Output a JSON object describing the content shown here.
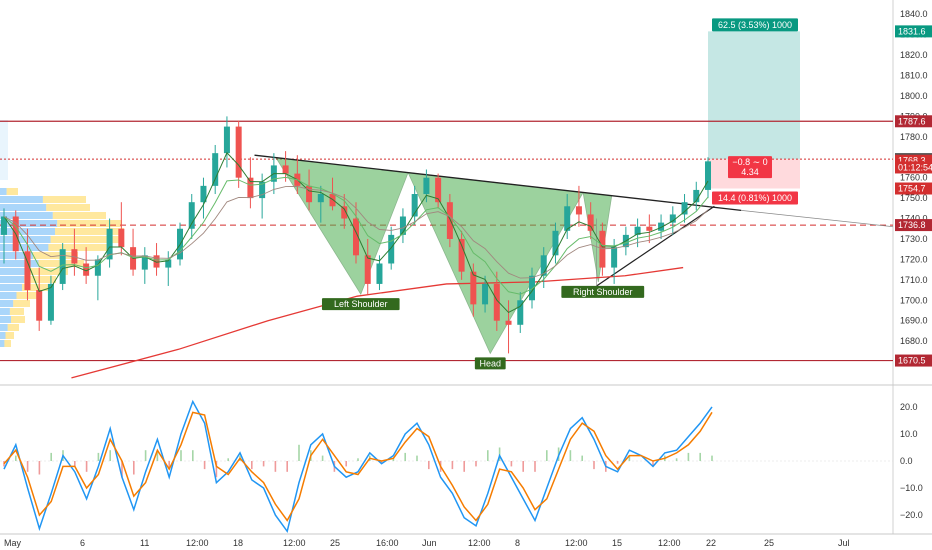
{
  "chart_data": [
    {
      "type": "candlestick",
      "price_axis": {
        "min": 1660,
        "max": 1845,
        "ticks": [
          1680,
          1690,
          1700,
          1710,
          1720,
          1730,
          1740,
          1750,
          1760,
          1770,
          1780,
          1790,
          1800,
          1810,
          1820,
          1830,
          1840
        ],
        "tick_labels": [
          "1680.0",
          "1690.0",
          "1700.0",
          "1710.0",
          "1720.0",
          "1730.0",
          "1740.0",
          "1750.0",
          "1760.0",
          "1770.0",
          "1780.0",
          "1790.0",
          "1800.0",
          "1810.0",
          "1820.0",
          "1830.0",
          "1840.0"
        ]
      },
      "time_axis": {
        "labels": [
          "May",
          "6",
          "11",
          "12:00",
          "18",
          "12:00",
          "25",
          "16:00",
          "Jun",
          "12:00",
          "8",
          "12:00",
          "15",
          "12:00",
          "22",
          "25",
          "Jul"
        ]
      },
      "price_tags": [
        {
          "value": 1831.6,
          "label": "1831.6",
          "color": "#089981"
        },
        {
          "value": 1787.6,
          "label": "1787.6",
          "color": "#b22833"
        },
        {
          "value": 1769.1,
          "label": "1769.1",
          "color": "#555555"
        },
        {
          "value": 1768.3,
          "label": "1768.3",
          "color": "#d32f2f"
        },
        {
          "value": 1765.0,
          "label": "01:12:54",
          "color": "#d32f2f"
        },
        {
          "value": 1754.7,
          "label": "1754.7",
          "color": "#d32f2f"
        },
        {
          "value": 1736.8,
          "label": "1736.8",
          "color": "#b22833"
        },
        {
          "value": 1670.5,
          "label": "1670.5",
          "color": "#b22833"
        }
      ],
      "horizontal_levels": [
        {
          "value": 1787.6,
          "style": "solid",
          "color": "#b22833"
        },
        {
          "value": 1736.8,
          "style": "dashed",
          "color": "#d32f2f"
        },
        {
          "value": 1670.5,
          "style": "solid",
          "color": "#b22833"
        },
        {
          "value": 1769.1,
          "style": "dotted",
          "color": "#d32f2f"
        }
      ],
      "position_tool": {
        "entry": 1769.1,
        "target": 1831.6,
        "stop": 1754.7,
        "target_label": "62.5 (3.53%) 1000",
        "stop_label": "14.4 (0.81%) 1000",
        "info_label_1": "−0.8 ∼ 0",
        "info_label_2": "4.34"
      },
      "pattern_labels": [
        "Left Shoulder",
        "Head",
        "Right Shoulder"
      ],
      "pattern_points": [
        {
          "t": 0.309,
          "p": 1771
        },
        {
          "t": 0.404,
          "p": 1703
        },
        {
          "t": 0.457,
          "p": 1762
        },
        {
          "t": 0.549,
          "p": 1674
        },
        {
          "t": 0.653,
          "p": 1752
        },
        {
          "t": 0.67,
          "p": 1709
        }
      ],
      "neckline": [
        {
          "t": 0.285,
          "p": 1771
        },
        {
          "t": 0.83,
          "p": 1744
        }
      ],
      "ma_long": [
        {
          "t": 0.08,
          "p": 1662
        },
        {
          "t": 0.2,
          "p": 1676
        },
        {
          "t": 0.3,
          "p": 1690
        },
        {
          "t": 0.4,
          "p": 1702
        },
        {
          "t": 0.5,
          "p": 1708
        },
        {
          "t": 0.6,
          "p": 1709
        },
        {
          "t": 0.7,
          "p": 1712
        },
        {
          "t": 0.765,
          "p": 1716
        }
      ],
      "candles": [
        [
          1732,
          1745,
          1718,
          1741
        ],
        [
          1741,
          1744,
          1720,
          1724
        ],
        [
          1724,
          1735,
          1700,
          1705
        ],
        [
          1705,
          1716,
          1685,
          1690
        ],
        [
          1690,
          1712,
          1688,
          1708
        ],
        [
          1708,
          1728,
          1705,
          1725
        ],
        [
          1725,
          1735,
          1712,
          1718
        ],
        [
          1718,
          1726,
          1708,
          1712
        ],
        [
          1712,
          1722,
          1700,
          1720
        ],
        [
          1720,
          1740,
          1716,
          1735
        ],
        [
          1735,
          1748,
          1722,
          1726
        ],
        [
          1726,
          1735,
          1712,
          1715
        ],
        [
          1715,
          1726,
          1708,
          1722
        ],
        [
          1722,
          1728,
          1712,
          1716
        ],
        [
          1716,
          1724,
          1707,
          1720
        ],
        [
          1720,
          1738,
          1717,
          1735
        ],
        [
          1735,
          1752,
          1730,
          1748
        ],
        [
          1748,
          1760,
          1740,
          1756
        ],
        [
          1756,
          1776,
          1752,
          1772
        ],
        [
          1772,
          1790,
          1765,
          1785
        ],
        [
          1785,
          1788,
          1755,
          1760
        ],
        [
          1760,
          1770,
          1745,
          1750
        ],
        [
          1750,
          1762,
          1740,
          1758
        ],
        [
          1758,
          1772,
          1752,
          1766
        ],
        [
          1766,
          1773,
          1758,
          1762
        ],
        [
          1762,
          1771,
          1752,
          1756
        ],
        [
          1756,
          1764,
          1744,
          1748
        ],
        [
          1748,
          1756,
          1738,
          1752
        ],
        [
          1752,
          1760,
          1744,
          1746
        ],
        [
          1746,
          1752,
          1735,
          1740
        ],
        [
          1740,
          1748,
          1718,
          1722
        ],
        [
          1722,
          1730,
          1703,
          1708
        ],
        [
          1708,
          1722,
          1705,
          1718
        ],
        [
          1718,
          1736,
          1715,
          1732
        ],
        [
          1732,
          1745,
          1728,
          1741
        ],
        [
          1741,
          1756,
          1737,
          1752
        ],
        [
          1752,
          1764,
          1748,
          1760
        ],
        [
          1760,
          1762,
          1745,
          1748
        ],
        [
          1748,
          1752,
          1726,
          1730
        ],
        [
          1730,
          1734,
          1710,
          1714
        ],
        [
          1714,
          1718,
          1692,
          1698
        ],
        [
          1698,
          1712,
          1694,
          1708
        ],
        [
          1708,
          1714,
          1685,
          1690
        ],
        [
          1690,
          1700,
          1674,
          1688
        ],
        [
          1688,
          1704,
          1684,
          1700
        ],
        [
          1700,
          1716,
          1696,
          1712
        ],
        [
          1712,
          1726,
          1706,
          1722
        ],
        [
          1722,
          1738,
          1718,
          1734
        ],
        [
          1734,
          1752,
          1730,
          1746
        ],
        [
          1746,
          1756,
          1736,
          1742
        ],
        [
          1742,
          1748,
          1730,
          1734
        ],
        [
          1734,
          1738,
          1712,
          1716
        ],
        [
          1716,
          1730,
          1708,
          1726
        ],
        [
          1726,
          1736,
          1722,
          1732
        ],
        [
          1732,
          1740,
          1726,
          1736
        ],
        [
          1736,
          1742,
          1728,
          1734
        ],
        [
          1734,
          1742,
          1730,
          1738
        ],
        [
          1738,
          1746,
          1732,
          1742
        ],
        [
          1742,
          1752,
          1738,
          1748
        ],
        [
          1748,
          1758,
          1744,
          1754
        ],
        [
          1754,
          1770,
          1750,
          1768
        ]
      ]
    },
    {
      "type": "line",
      "indicator": "oscillator",
      "y_axis": {
        "min": -27,
        "max": 27,
        "ticks": [
          20,
          10,
          0,
          -10,
          -20
        ],
        "tick_labels": [
          "20.0",
          "10.0",
          "0.0",
          "−10.0",
          "−20.0"
        ]
      },
      "series": [
        {
          "color": "#2196f3",
          "values": [
            -3,
            6,
            -10,
            -25,
            -12,
            2,
            -4,
            -14,
            -2,
            12,
            -6,
            -18,
            -4,
            8,
            -6,
            10,
            22,
            14,
            -8,
            -4,
            3,
            -7,
            -10,
            -20,
            -26,
            -8,
            6,
            10,
            -2,
            -6,
            -4,
            3,
            -1,
            2,
            10,
            14,
            6,
            -6,
            -12,
            -21,
            -24,
            -12,
            2,
            -6,
            -14,
            -22,
            -10,
            2,
            12,
            16,
            8,
            -2,
            -4,
            4,
            2,
            -2,
            3,
            4,
            9,
            14,
            20
          ]
        },
        {
          "color": "#f57c00",
          "values": [
            -1,
            4,
            -6,
            -20,
            -15,
            -2,
            -2,
            -10,
            -5,
            8,
            0,
            -13,
            -8,
            4,
            -3,
            6,
            18,
            17,
            -2,
            -5,
            1,
            -4,
            -8,
            -16,
            -22,
            -14,
            2,
            8,
            2,
            -4,
            -5,
            1,
            0,
            1,
            7,
            12,
            9,
            -2,
            -9,
            -17,
            -22,
            -16,
            -3,
            -4,
            -10,
            -18,
            -14,
            -3,
            8,
            14,
            11,
            2,
            -3,
            2,
            2,
            0,
            1,
            3,
            6,
            11,
            18
          ]
        },
        {
          "color": "#ef9a9a",
          "type": "histogram",
          "values": [
            -2,
            2,
            -4,
            -5,
            3,
            4,
            -2,
            -4,
            3,
            4,
            -6,
            -5,
            4,
            4,
            -3,
            4,
            4,
            -3,
            -6,
            1,
            2,
            -3,
            -2,
            -4,
            -4,
            6,
            4,
            2,
            -4,
            -2,
            1,
            2,
            -1,
            1,
            3,
            2,
            -3,
            -4,
            -3,
            -4,
            -2,
            4,
            5,
            -2,
            -4,
            -4,
            4,
            5,
            4,
            2,
            -3,
            -4,
            -1,
            2,
            0,
            -2,
            2,
            1,
            3,
            3,
            2
          ]
        }
      ]
    }
  ]
}
